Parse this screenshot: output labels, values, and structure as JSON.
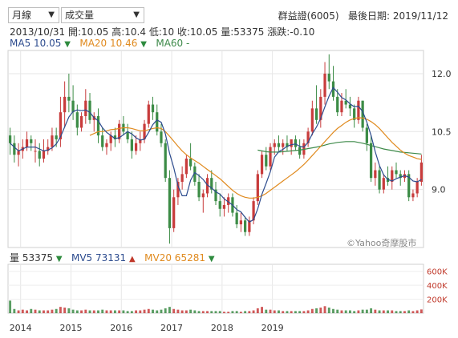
{
  "header": {
    "period_select": "月線",
    "indicator_select": "成交量",
    "stock": "群益證(6005)",
    "last_date_label": "最後日期: 2019/11/12"
  },
  "info_bar": {
    "date": "2013/10/31",
    "open": "開:10.05",
    "high": "高:10.4",
    "low": "低:10",
    "close": "收:10.05",
    "volume": "量:53375",
    "change": "漲跌:-0.10"
  },
  "ma_legend": {
    "ma5": "MA5 10.05",
    "ma20": "MA20 10.46",
    "ma60": "MA60 -"
  },
  "vol_legend": {
    "vol": "量 53375",
    "mv5": "MV5 73131",
    "mv20": "MV20 65281"
  },
  "watermark": "©Yahoo奇摩股市",
  "colors": {
    "up": "#c83c3c",
    "down": "#3c8c46",
    "ma5": "#2c4b8e",
    "ma20": "#e08a1e",
    "ma60": "#3e8a4a",
    "volume": "#8b3a3a"
  },
  "chart_data": {
    "type": "candlestick",
    "x_labels": [
      "2014",
      "2015",
      "2016",
      "2017",
      "2018",
      "2019"
    ],
    "y_ticks": [
      "12.0",
      "10.5",
      "9.0"
    ],
    "ylim": [
      7.5,
      12.6
    ],
    "vol_ticks": [
      "600K",
      "400K",
      "200K"
    ],
    "vol_lim": [
      0,
      700000
    ],
    "candles": [
      [
        10.4,
        10.6,
        9.9,
        10.2
      ],
      [
        10.2,
        10.4,
        9.7,
        9.9
      ],
      [
        9.9,
        10.2,
        9.6,
        10.0
      ],
      [
        10.0,
        10.3,
        9.8,
        10.1
      ],
      [
        10.1,
        10.5,
        10.0,
        10.3
      ],
      [
        10.3,
        10.4,
        10.0,
        10.2
      ],
      [
        10.0,
        10.3,
        9.7,
        10.0
      ],
      [
        10.0,
        10.2,
        9.6,
        9.8
      ],
      [
        9.8,
        10.3,
        9.7,
        10.0
      ],
      [
        10.0,
        10.3,
        9.9,
        10.1
      ],
      [
        10.1,
        10.6,
        10.0,
        10.4
      ],
      [
        10.4,
        10.6,
        10.1,
        10.3
      ],
      [
        10.3,
        11.4,
        10.1,
        11.0
      ],
      [
        11.0,
        11.8,
        10.6,
        11.4
      ],
      [
        11.4,
        12.0,
        11.0,
        11.3
      ],
      [
        11.3,
        11.7,
        10.8,
        11.0
      ],
      [
        11.0,
        11.2,
        10.4,
        10.6
      ],
      [
        10.6,
        11.0,
        10.5,
        10.9
      ],
      [
        10.9,
        11.6,
        10.7,
        11.3
      ],
      [
        11.3,
        11.5,
        10.7,
        10.8
      ],
      [
        10.8,
        11.0,
        10.5,
        10.9
      ],
      [
        10.9,
        11.1,
        10.2,
        10.4
      ],
      [
        10.4,
        10.6,
        10.0,
        10.1
      ],
      [
        10.1,
        10.3,
        9.9,
        10.2
      ],
      [
        10.2,
        10.5,
        10.0,
        10.4
      ],
      [
        10.4,
        10.6,
        10.1,
        10.3
      ],
      [
        10.3,
        10.8,
        10.2,
        10.7
      ],
      [
        10.7,
        10.9,
        10.4,
        10.5
      ],
      [
        10.5,
        10.7,
        10.2,
        10.3
      ],
      [
        10.3,
        10.5,
        9.8,
        10.0
      ],
      [
        10.0,
        10.4,
        9.9,
        10.2
      ],
      [
        10.2,
        10.5,
        10.0,
        10.3
      ],
      [
        10.3,
        10.8,
        10.2,
        10.7
      ],
      [
        10.7,
        11.3,
        10.6,
        11.2
      ],
      [
        11.2,
        11.4,
        10.8,
        11.0
      ],
      [
        11.0,
        11.2,
        10.4,
        10.5
      ],
      [
        10.5,
        10.7,
        10.1,
        10.2
      ],
      [
        10.2,
        10.3,
        9.2,
        9.3
      ],
      [
        9.3,
        9.5,
        7.6,
        8.0
      ],
      [
        8.0,
        9.0,
        7.9,
        8.8
      ],
      [
        8.8,
        9.3,
        8.6,
        9.2
      ],
      [
        9.2,
        9.6,
        9.0,
        9.4
      ],
      [
        9.4,
        9.9,
        9.3,
        9.8
      ],
      [
        9.8,
        10.2,
        9.5,
        9.6
      ],
      [
        9.6,
        9.7,
        9.1,
        9.2
      ],
      [
        9.2,
        9.4,
        8.7,
        8.8
      ],
      [
        8.8,
        9.0,
        8.4,
        8.9
      ],
      [
        8.9,
        9.4,
        8.8,
        9.3
      ],
      [
        9.3,
        9.5,
        8.9,
        9.0
      ],
      [
        9.0,
        9.2,
        8.6,
        8.7
      ],
      [
        8.7,
        8.9,
        8.3,
        8.5
      ],
      [
        8.5,
        8.8,
        8.3,
        8.6
      ],
      [
        8.6,
        8.9,
        8.4,
        8.8
      ],
      [
        8.8,
        8.9,
        8.3,
        8.4
      ],
      [
        8.4,
        8.6,
        8.0,
        8.1
      ],
      [
        8.1,
        8.4,
        7.9,
        8.2
      ],
      [
        8.2,
        8.3,
        7.8,
        7.9
      ],
      [
        7.9,
        8.3,
        7.8,
        8.2
      ],
      [
        8.2,
        8.8,
        8.1,
        8.7
      ],
      [
        8.7,
        9.5,
        8.6,
        9.4
      ],
      [
        9.4,
        10.0,
        9.3,
        9.9
      ],
      [
        9.9,
        10.1,
        9.5,
        9.6
      ],
      [
        9.6,
        10.2,
        9.5,
        10.1
      ],
      [
        10.1,
        10.3,
        9.9,
        10.2
      ],
      [
        10.2,
        10.4,
        10.0,
        10.1
      ],
      [
        10.1,
        10.3,
        9.9,
        10.2
      ],
      [
        10.2,
        10.4,
        10.0,
        10.1
      ],
      [
        10.1,
        10.3,
        9.9,
        10.3
      ],
      [
        10.3,
        10.4,
        10.0,
        10.1
      ],
      [
        10.1,
        10.3,
        9.8,
        9.9
      ],
      [
        9.9,
        10.3,
        9.8,
        10.2
      ],
      [
        10.2,
        10.6,
        10.1,
        10.5
      ],
      [
        10.5,
        11.3,
        10.4,
        11.1
      ],
      [
        11.1,
        11.7,
        10.7,
        10.8
      ],
      [
        10.8,
        11.6,
        10.6,
        11.4
      ],
      [
        11.4,
        12.3,
        11.2,
        12.0
      ],
      [
        12.0,
        12.5,
        11.6,
        11.8
      ],
      [
        11.8,
        12.2,
        11.3,
        11.4
      ],
      [
        11.4,
        11.6,
        10.9,
        11.0
      ],
      [
        11.0,
        11.5,
        10.9,
        11.3
      ],
      [
        11.3,
        11.6,
        11.1,
        11.2
      ],
      [
        11.2,
        11.4,
        10.9,
        11.1
      ],
      [
        11.1,
        11.2,
        10.6,
        10.8
      ],
      [
        10.8,
        11.4,
        10.7,
        11.3
      ],
      [
        11.3,
        11.3,
        10.5,
        10.6
      ],
      [
        10.6,
        10.7,
        10.0,
        10.2
      ],
      [
        10.2,
        10.4,
        9.2,
        9.3
      ],
      [
        9.3,
        9.7,
        9.1,
        9.5
      ],
      [
        9.5,
        9.6,
        8.9,
        9.0
      ],
      [
        9.0,
        9.4,
        8.9,
        9.3
      ],
      [
        9.3,
        9.6,
        9.1,
        9.2
      ],
      [
        9.2,
        9.6,
        9.0,
        9.5
      ],
      [
        9.5,
        9.7,
        9.3,
        9.4
      ],
      [
        9.4,
        9.5,
        9.1,
        9.3
      ],
      [
        9.3,
        9.5,
        9.2,
        9.4
      ],
      [
        9.4,
        9.5,
        8.7,
        8.8
      ],
      [
        8.8,
        9.0,
        8.7,
        8.9
      ],
      [
        8.9,
        9.3,
        8.8,
        9.2
      ],
      [
        9.2,
        9.9,
        9.1,
        9.7
      ]
    ],
    "ma5": [
      10.2,
      10.1,
      10.0,
      10.05,
      10.1,
      10.1,
      10.1,
      10.05,
      10.0,
      10.02,
      10.08,
      10.18,
      10.36,
      10.62,
      10.88,
      11.02,
      11.06,
      11.04,
      11.06,
      11.0,
      10.86,
      10.78,
      10.6,
      10.48,
      10.4,
      10.32,
      10.34,
      10.42,
      10.5,
      10.44,
      10.34,
      10.28,
      10.3,
      10.48,
      10.68,
      10.8,
      10.74,
      10.44,
      9.94,
      9.56,
      9.1,
      8.84,
      8.84,
      9.24,
      9.44,
      9.36,
      9.26,
      9.12,
      9.04,
      8.94,
      8.88,
      8.76,
      8.68,
      8.6,
      8.48,
      8.42,
      8.28,
      8.16,
      8.22,
      8.5,
      8.88,
      9.16,
      9.46,
      9.84,
      9.98,
      10.04,
      10.12,
      10.16,
      10.18,
      10.12,
      10.1,
      10.22,
      10.44,
      10.62,
      10.84,
      11.14,
      11.42,
      11.64,
      11.52,
      11.38,
      11.32,
      11.22,
      11.14,
      11.16,
      11.02,
      10.74,
      10.4,
      9.98,
      9.62,
      9.38,
      9.26,
      9.22,
      9.28,
      9.32,
      9.36,
      9.32,
      9.22,
      9.2,
      9.26
    ],
    "ma20": [
      null,
      null,
      null,
      null,
      null,
      null,
      null,
      null,
      null,
      null,
      null,
      null,
      null,
      null,
      null,
      null,
      null,
      null,
      null,
      10.4,
      10.45,
      10.5,
      10.5,
      10.52,
      10.55,
      10.56,
      10.58,
      10.6,
      10.6,
      10.58,
      10.55,
      10.52,
      10.52,
      10.55,
      10.58,
      10.6,
      10.58,
      10.5,
      10.38,
      10.25,
      10.12,
      10.0,
      9.9,
      9.82,
      9.75,
      9.68,
      9.6,
      9.52,
      9.44,
      9.36,
      9.28,
      9.18,
      9.08,
      8.98,
      8.9,
      8.84,
      8.8,
      8.78,
      8.78,
      8.8,
      8.84,
      8.9,
      8.98,
      9.06,
      9.14,
      9.22,
      9.3,
      9.38,
      9.46,
      9.55,
      9.65,
      9.76,
      9.88,
      10.0,
      10.12,
      10.24,
      10.36,
      10.48,
      10.58,
      10.66,
      10.74,
      10.8,
      10.84,
      10.86,
      10.85,
      10.82,
      10.76,
      10.68,
      10.58,
      10.46,
      10.34,
      10.22,
      10.12,
      10.02,
      9.94,
      9.88,
      9.84,
      9.8,
      9.78
    ],
    "ma60": [
      null,
      null,
      null,
      null,
      null,
      null,
      null,
      null,
      null,
      null,
      null,
      null,
      null,
      null,
      null,
      null,
      null,
      null,
      null,
      null,
      null,
      null,
      null,
      null,
      null,
      null,
      null,
      null,
      null,
      null,
      null,
      null,
      null,
      null,
      null,
      null,
      null,
      null,
      null,
      null,
      null,
      null,
      null,
      null,
      null,
      null,
      null,
      null,
      null,
      null,
      null,
      null,
      null,
      null,
      null,
      null,
      null,
      null,
      null,
      10.02,
      10.0,
      9.98,
      9.97,
      9.97,
      9.97,
      9.98,
      9.99,
      10.0,
      10.01,
      10.02,
      10.04,
      10.06,
      10.08,
      10.1,
      10.12,
      10.15,
      10.18,
      10.2,
      10.22,
      10.23,
      10.24,
      10.24,
      10.24,
      10.22,
      10.2,
      10.17,
      10.14,
      10.11,
      10.08,
      10.05,
      10.03,
      10.01,
      9.99,
      9.97,
      9.96,
      9.95,
      9.94,
      9.93,
      9.92
    ],
    "volume": [
      180000,
      60000,
      40000,
      50000,
      40000,
      60000,
      50000,
      40000,
      40000,
      40000,
      50000,
      60000,
      90000,
      80000,
      70000,
      50000,
      40000,
      40000,
      50000,
      40000,
      40000,
      40000,
      50000,
      40000,
      40000,
      40000,
      40000,
      40000,
      30000,
      30000,
      40000,
      40000,
      50000,
      60000,
      50000,
      40000,
      50000,
      70000,
      90000,
      60000,
      50000,
      40000,
      40000,
      50000,
      40000,
      30000,
      30000,
      30000,
      30000,
      30000,
      30000,
      20000,
      20000,
      30000,
      30000,
      20000,
      30000,
      30000,
      40000,
      70000,
      90000,
      50000,
      50000,
      40000,
      40000,
      30000,
      30000,
      30000,
      30000,
      30000,
      30000,
      40000,
      60000,
      70000,
      80000,
      100000,
      80000,
      60000,
      50000,
      40000,
      40000,
      40000,
      30000,
      40000,
      50000,
      50000,
      70000,
      50000,
      40000,
      40000,
      40000,
      40000,
      30000,
      30000,
      30000,
      40000,
      30000,
      40000,
      53375
    ]
  }
}
